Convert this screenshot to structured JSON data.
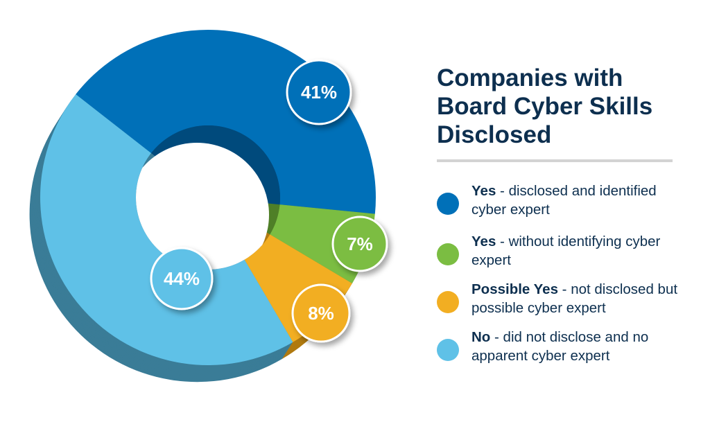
{
  "chart_data": {
    "type": "pie",
    "variant": "3d-donut",
    "title": "Companies with Board Cyber Skills Disclosed",
    "categories": [
      "Yes - disclosed and identified cyber expert",
      "Yes - without identifying cyber expert",
      "Possible Yes - not disclosed but possible cyber expert",
      "No - did not disclose and no apparent cyber expert"
    ],
    "values": [
      41,
      7,
      8,
      44
    ],
    "data_labels": [
      "41%",
      "7%",
      "8%",
      "44%"
    ],
    "colors": [
      "#0070b8",
      "#7bbd42",
      "#f2ae22",
      "#5fc1e7"
    ],
    "side_colors": [
      "#004a7c",
      "#4f7f27",
      "#b07a10",
      "#3a7c97"
    ],
    "legend_placement": "right",
    "legend": [
      {
        "bold": "Yes",
        "text": " - disclosed and identified cyber expert"
      },
      {
        "bold": "Yes",
        "text": " - without identifying cyber expert"
      },
      {
        "bold": "Possible Yes",
        "text": " - not disclosed but possible cyber expert"
      },
      {
        "bold": "No",
        "text": " - did not disclose and no apparent cyber expert"
      }
    ]
  }
}
